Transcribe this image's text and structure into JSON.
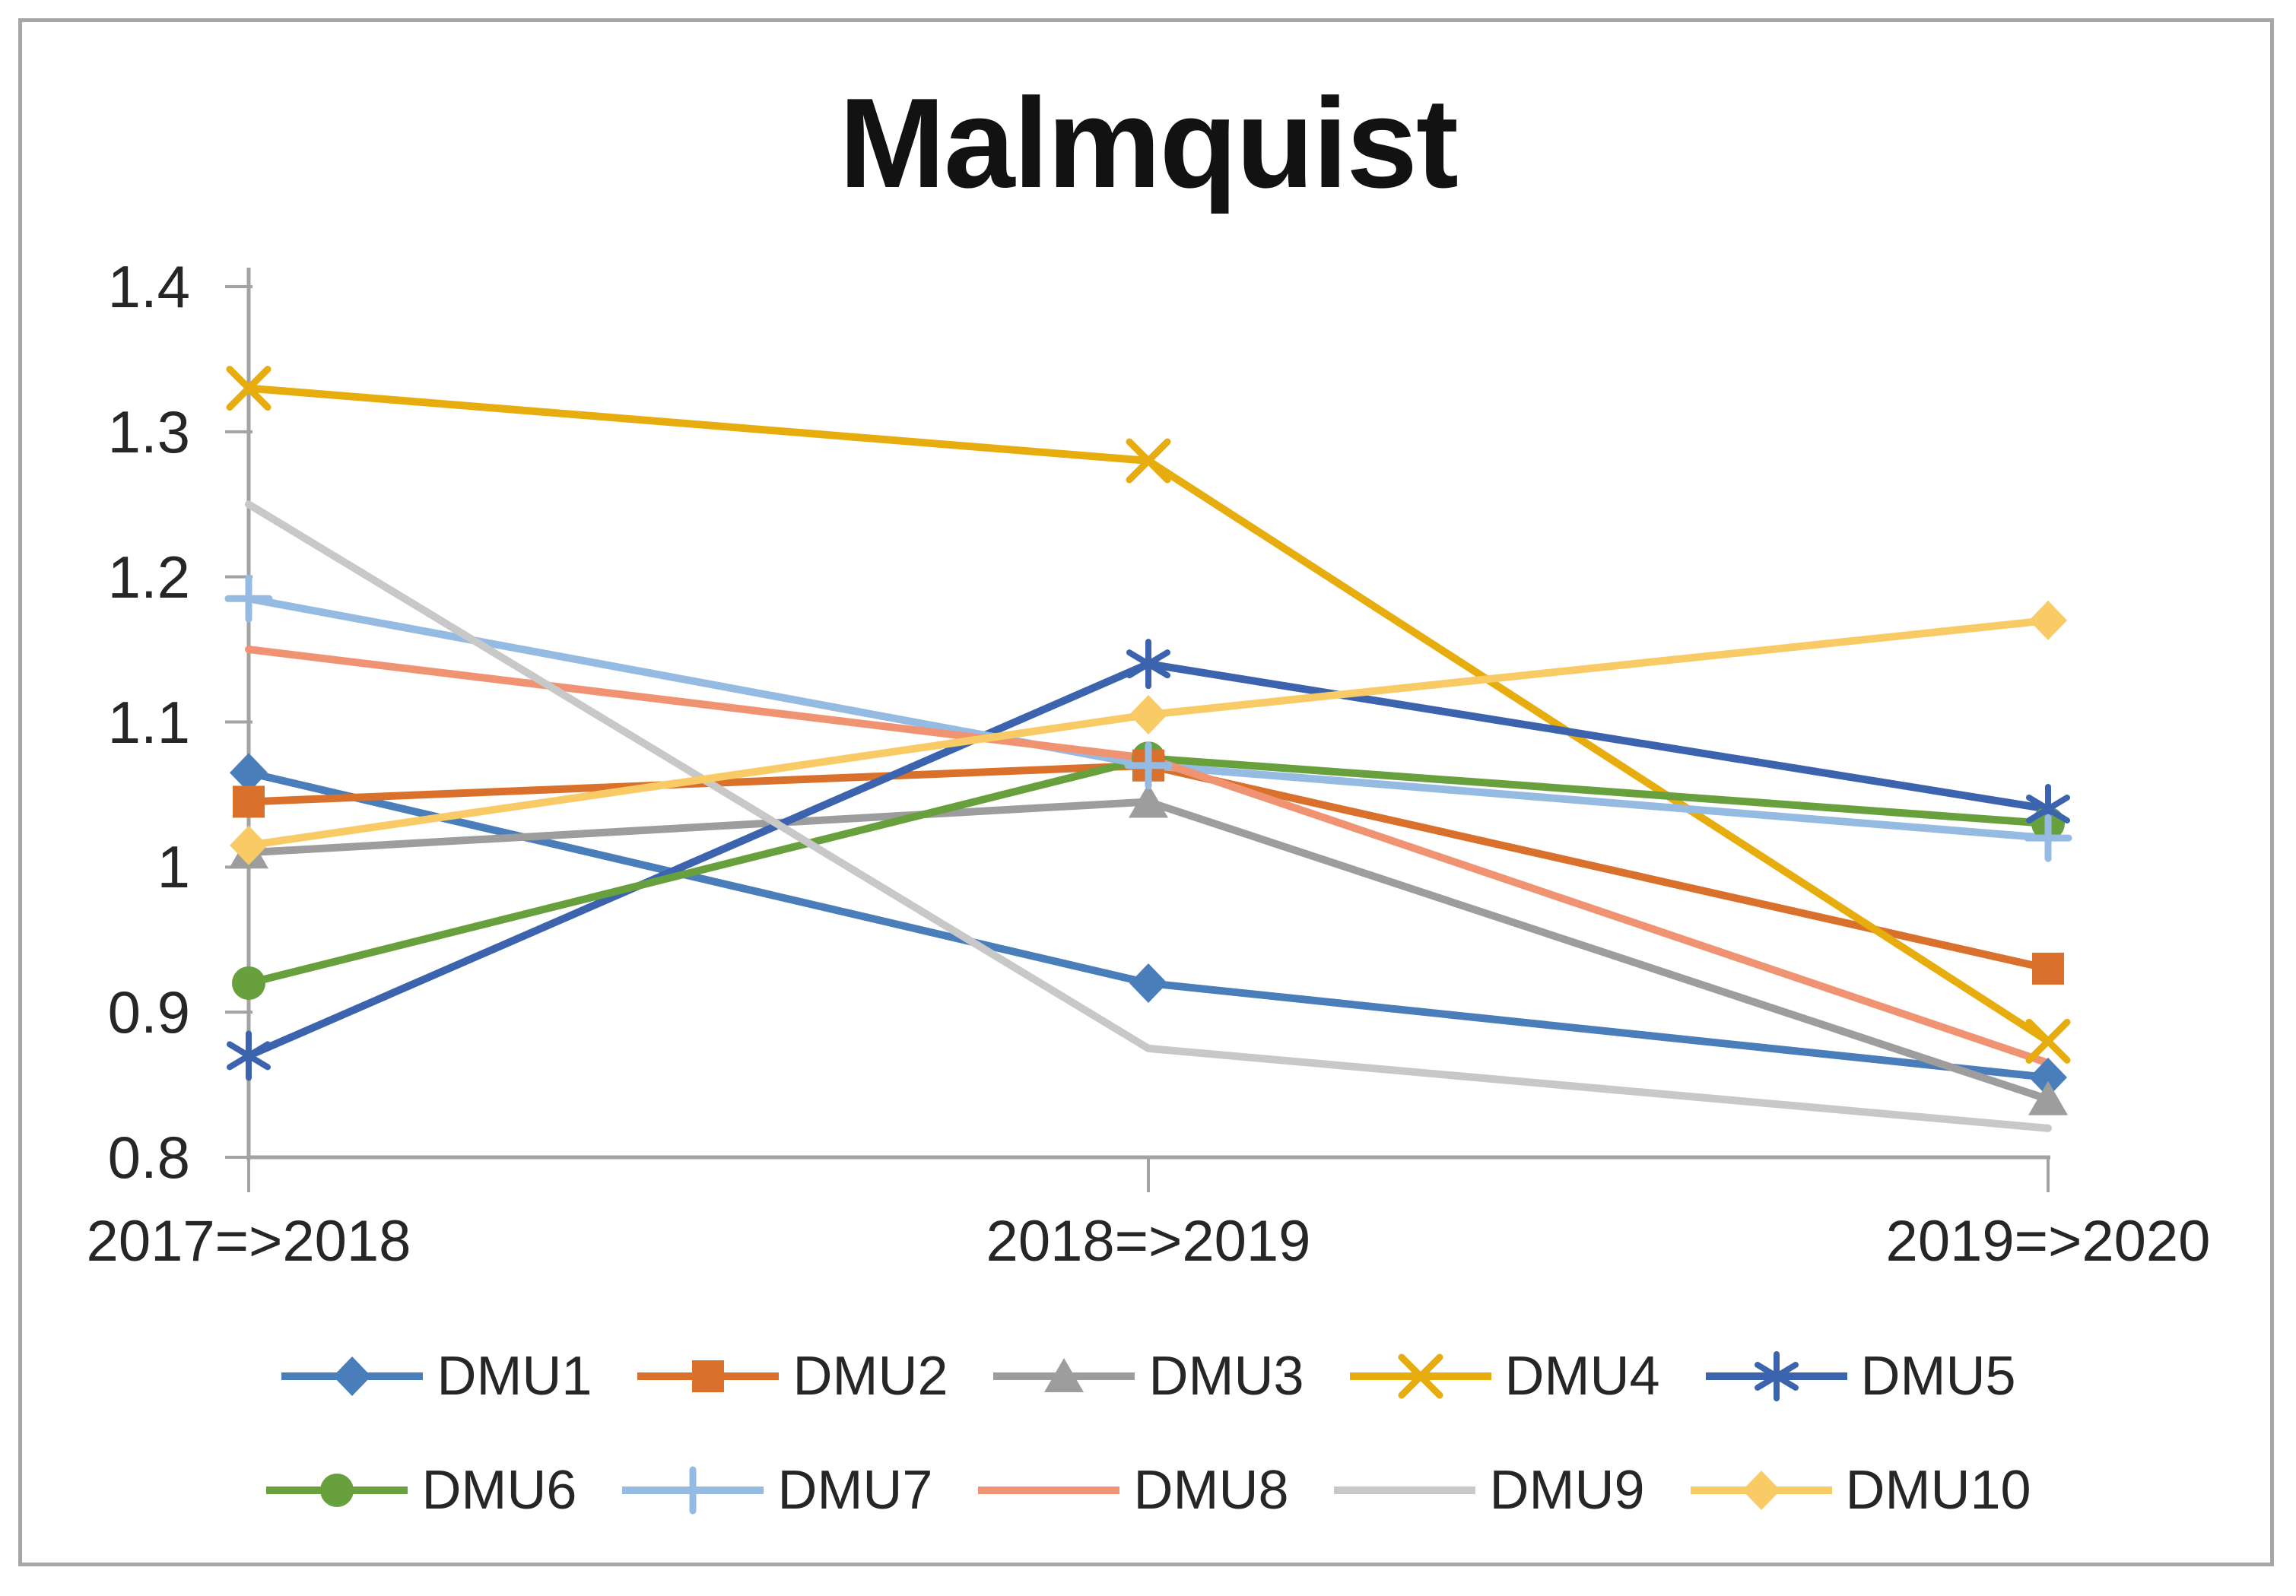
{
  "chart_data": {
    "type": "line",
    "title": "Malmquist",
    "categories": [
      "2017=>2018",
      "2018=>2019",
      "2019=>2020"
    ],
    "xlabel": "",
    "ylabel": "",
    "y_axis": {
      "min": 0.8,
      "max": 1.4,
      "step": 0.1,
      "tick_labels": [
        "1.4",
        "1.3",
        "1.2",
        "1.1",
        "1",
        "0.9",
        "0.8"
      ]
    },
    "grid": false,
    "legend_position": "bottom",
    "axis_color": "#a3a3a3",
    "text_color": "#262626",
    "series": [
      {
        "name": "DMU1",
        "color": "#4a7ebb",
        "marker": "diamond",
        "values": [
          1.065,
          0.92,
          0.855
        ]
      },
      {
        "name": "DMU2",
        "color": "#d9702c",
        "marker": "square",
        "values": [
          1.045,
          1.07,
          0.93
        ]
      },
      {
        "name": "DMU3",
        "color": "#9d9d9d",
        "marker": "triangle",
        "values": [
          1.01,
          1.045,
          0.84
        ]
      },
      {
        "name": "DMU4",
        "color": "#e7ac0d",
        "marker": "x",
        "values": [
          1.33,
          1.28,
          0.88
        ]
      },
      {
        "name": "DMU5",
        "color": "#3c64ae",
        "marker": "asterisk",
        "values": [
          0.87,
          1.14,
          1.04
        ]
      },
      {
        "name": "DMU6",
        "color": "#67a03c",
        "marker": "circle",
        "values": [
          0.92,
          1.075,
          1.03
        ]
      },
      {
        "name": "DMU7",
        "color": "#95bbe3",
        "marker": "plus",
        "values": [
          1.185,
          1.07,
          1.02
        ]
      },
      {
        "name": "DMU8",
        "color": "#f09372",
        "marker": "none",
        "values": [
          1.15,
          1.075,
          0.865
        ]
      },
      {
        "name": "DMU9",
        "color": "#c8c8c8",
        "marker": "none",
        "values": [
          1.25,
          0.875,
          0.82
        ]
      },
      {
        "name": "DMU10",
        "color": "#f9cb66",
        "marker": "diamond",
        "values": [
          1.015,
          1.105,
          1.17
        ]
      }
    ]
  }
}
